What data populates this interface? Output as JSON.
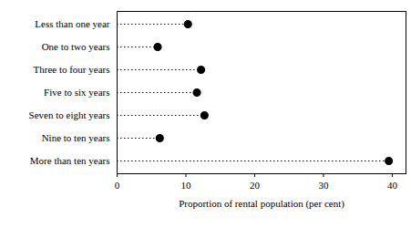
{
  "chart_data": {
    "type": "dot",
    "orientation": "horizontal",
    "categories": [
      "Less than one year",
      "One to two years",
      "Three to four years",
      "Five to six years",
      "Seven to eight years",
      "Nine to ten years",
      "More than ten years"
    ],
    "values": [
      10.3,
      5.9,
      12.2,
      11.6,
      12.7,
      6.2,
      39.5
    ],
    "color": "#000000",
    "line_style": "dotted",
    "xlabel": "Proportion of rental population (per cent)",
    "xlim": [
      0,
      42
    ],
    "xticks": [
      0,
      10,
      20,
      30,
      40
    ],
    "grid": false
  }
}
